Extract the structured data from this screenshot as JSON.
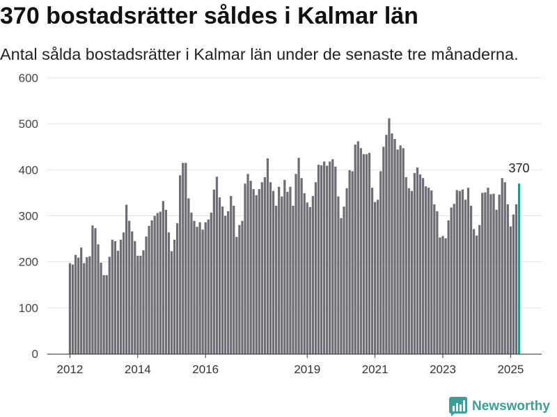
{
  "chart_data": {
    "type": "bar",
    "title": "370 bostadsrätter såldes i Kalmar län",
    "subtitle": "Antal sålda bostadsrätter i Kalmar län under de senaste tre månaderna.",
    "x": [
      "2012-01",
      "2012-02",
      "2012-03",
      "2012-04",
      "2012-05",
      "2012-06",
      "2012-07",
      "2012-08",
      "2012-09",
      "2012-10",
      "2012-11",
      "2012-12",
      "2013-01",
      "2013-02",
      "2013-03",
      "2013-04",
      "2013-05",
      "2013-06",
      "2013-07",
      "2013-08",
      "2013-09",
      "2013-10",
      "2013-11",
      "2013-12",
      "2014-01",
      "2014-02",
      "2014-03",
      "2014-04",
      "2014-05",
      "2014-06",
      "2014-07",
      "2014-08",
      "2014-09",
      "2014-10",
      "2014-11",
      "2014-12",
      "2015-01",
      "2015-02",
      "2015-03",
      "2015-04",
      "2015-05",
      "2015-06",
      "2015-07",
      "2015-08",
      "2015-09",
      "2015-10",
      "2015-11",
      "2015-12",
      "2016-01",
      "2016-02",
      "2016-03",
      "2016-04",
      "2016-05",
      "2016-06",
      "2016-07",
      "2016-08",
      "2016-09",
      "2016-10",
      "2016-11",
      "2016-12",
      "2017-01",
      "2017-02",
      "2017-03",
      "2017-04",
      "2017-05",
      "2017-06",
      "2017-07",
      "2017-08",
      "2017-09",
      "2017-10",
      "2017-11",
      "2017-12",
      "2018-01",
      "2018-02",
      "2018-03",
      "2018-04",
      "2018-05",
      "2018-06",
      "2018-07",
      "2018-08",
      "2018-09",
      "2018-10",
      "2018-11",
      "2018-12",
      "2019-01",
      "2019-02",
      "2019-03",
      "2019-04",
      "2019-05",
      "2019-06",
      "2019-07",
      "2019-08",
      "2019-09",
      "2019-10",
      "2019-11",
      "2019-12",
      "2020-01",
      "2020-02",
      "2020-03",
      "2020-04",
      "2020-05",
      "2020-06",
      "2020-07",
      "2020-08",
      "2020-09",
      "2020-10",
      "2020-11",
      "2020-12",
      "2021-01",
      "2021-02",
      "2021-03",
      "2021-04",
      "2021-05",
      "2021-06",
      "2021-07",
      "2021-08",
      "2021-09",
      "2021-10",
      "2021-11",
      "2021-12",
      "2022-01",
      "2022-02",
      "2022-03",
      "2022-04",
      "2022-05",
      "2022-06",
      "2022-07",
      "2022-08",
      "2022-09",
      "2022-10",
      "2022-11",
      "2022-12",
      "2023-01",
      "2023-02",
      "2023-03",
      "2023-04",
      "2023-05",
      "2023-06",
      "2023-07",
      "2023-08",
      "2023-09",
      "2023-10",
      "2023-11",
      "2023-12",
      "2024-01",
      "2024-02",
      "2024-03",
      "2024-04",
      "2024-05",
      "2024-06",
      "2024-07",
      "2024-08",
      "2024-09",
      "2024-10",
      "2024-11",
      "2024-12",
      "2025-01",
      "2025-02",
      "2025-03",
      "2025-04"
    ],
    "values": [
      197,
      194,
      215,
      209,
      231,
      197,
      210,
      212,
      279,
      273,
      238,
      198,
      171,
      171,
      211,
      248,
      245,
      224,
      248,
      264,
      324,
      289,
      266,
      245,
      213,
      213,
      225,
      255,
      278,
      290,
      300,
      306,
      309,
      332,
      313,
      264,
      223,
      248,
      284,
      388,
      415,
      415,
      338,
      307,
      289,
      276,
      286,
      270,
      286,
      292,
      307,
      357,
      385,
      340,
      320,
      300,
      310,
      343,
      322,
      254,
      280,
      289,
      370,
      391,
      376,
      358,
      345,
      358,
      373,
      384,
      425,
      373,
      354,
      322,
      363,
      342,
      378,
      352,
      363,
      322,
      391,
      426,
      382,
      349,
      329,
      319,
      343,
      373,
      411,
      410,
      418,
      409,
      418,
      423,
      407,
      342,
      295,
      320,
      360,
      399,
      397,
      455,
      462,
      447,
      434,
      434,
      437,
      361,
      330,
      335,
      397,
      450,
      476,
      512,
      479,
      467,
      444,
      453,
      447,
      384,
      360,
      354,
      393,
      405,
      390,
      382,
      364,
      361,
      355,
      325,
      310,
      253,
      256,
      251,
      290,
      318,
      326,
      356,
      354,
      357,
      335,
      361,
      322,
      271,
      257,
      280,
      350,
      351,
      361,
      347,
      348,
      313,
      346,
      382,
      373,
      325,
      277,
      303,
      325,
      370
    ],
    "xlim": [
      "2011-05",
      "2025-12"
    ],
    "ylim": [
      0,
      600
    ],
    "yticks": [
      0,
      100,
      200,
      300,
      400,
      500,
      600
    ],
    "xticks": [
      {
        "x": "2012-01",
        "label": "2012"
      },
      {
        "x": "2014-01",
        "label": "2014"
      },
      {
        "x": "2016-01",
        "label": "2016"
      },
      {
        "x": "2019-01",
        "label": "2019"
      },
      {
        "x": "2021-01",
        "label": "2021"
      },
      {
        "x": "2023-01",
        "label": "2023"
      },
      {
        "x": "2025-01",
        "label": "2025"
      }
    ],
    "highlight": {
      "x": "2025-04",
      "value": 370,
      "label": "370",
      "color": "#1d9a8a"
    },
    "bar_color": "#6e6d73",
    "grid": true,
    "legend": "none"
  },
  "branding": {
    "logo_text": "Newsworthy",
    "logo_icon": "newsworthy-logo-icon",
    "color": "#3b9e97"
  }
}
